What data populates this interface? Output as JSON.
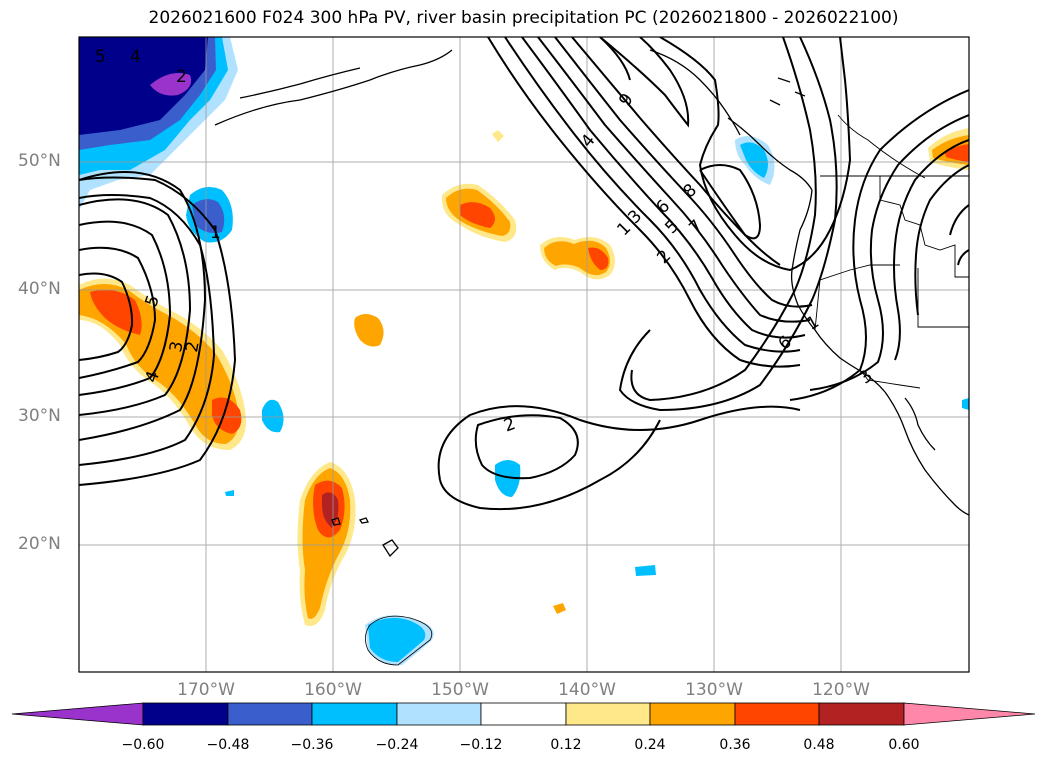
{
  "title": "2026021600 F024 300 hPa PV, river basin precipitation PC (2026021800 - 2026022100)",
  "lat_labels": [
    "50°N",
    "40°N",
    "30°N",
    "20°N"
  ],
  "lon_labels": [
    "170°W",
    "160°W",
    "150°W",
    "140°W",
    "130°W",
    "120°W"
  ],
  "colorbar": {
    "ticks": [
      "−0.60",
      "−0.48",
      "−0.36",
      "−0.24",
      "−0.12",
      "0.12",
      "0.24",
      "0.36",
      "0.48",
      "0.60"
    ],
    "colors": [
      "#9933cc",
      "#00008b",
      "#3a5fcd",
      "#00bfff",
      "#b0e2ff",
      "#ffffff",
      "#ffe88a",
      "#ffa500",
      "#ff4500",
      "#b22222",
      "#ff88aa"
    ]
  },
  "contour_labels": [
    "5",
    "4",
    "2",
    "9",
    "4",
    "8",
    "6",
    "7",
    "5",
    "3",
    "1",
    "2",
    "1",
    "5",
    "3",
    "2",
    "4",
    "2",
    "6",
    "1",
    "3"
  ]
}
